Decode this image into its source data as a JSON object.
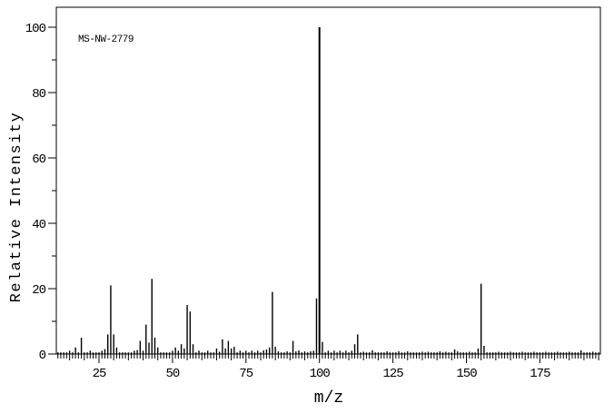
{
  "figure": {
    "background_color": "#ffffff",
    "line_color": "#000000",
    "annotation": "MS-NW-2779"
  },
  "chart_data": {
    "type": "bar",
    "subtype": "mass-spectrum",
    "title": "",
    "xlabel": "m/z",
    "ylabel": "Relative Intensity",
    "annotation": "MS-NW-2779",
    "xlim": [
      10.5,
      195.6
    ],
    "ylim": [
      0,
      106
    ],
    "x_major_ticks": [
      25,
      50,
      75,
      100,
      125,
      150,
      175
    ],
    "x_minor_step": 1,
    "x_medium_step": 5,
    "y_major_ticks": [
      0,
      20,
      40,
      60,
      80,
      100
    ],
    "y_minor_step": 10,
    "grid": "off",
    "legend": "none",
    "base_peak": {
      "mz": 100,
      "intensity": 100
    },
    "peaks": [
      [
        15,
        1
      ],
      [
        17,
        2
      ],
      [
        19,
        5
      ],
      [
        22,
        1
      ],
      [
        26,
        1
      ],
      [
        27,
        1.5
      ],
      [
        28,
        6
      ],
      [
        29,
        21
      ],
      [
        30,
        6
      ],
      [
        31,
        2
      ],
      [
        37,
        1
      ],
      [
        38,
        1.2
      ],
      [
        39,
        4
      ],
      [
        40,
        1
      ],
      [
        41,
        9
      ],
      [
        42,
        3.5
      ],
      [
        43,
        23
      ],
      [
        44,
        5
      ],
      [
        45,
        2
      ],
      [
        50,
        1
      ],
      [
        51,
        2
      ],
      [
        52,
        1
      ],
      [
        53,
        3
      ],
      [
        54,
        1.7
      ],
      [
        55,
        15
      ],
      [
        56,
        13
      ],
      [
        57,
        3
      ],
      [
        59,
        1
      ],
      [
        62,
        1
      ],
      [
        65,
        1.7
      ],
      [
        66,
        0.7
      ],
      [
        67,
        4.5
      ],
      [
        68,
        1.7
      ],
      [
        69,
        4
      ],
      [
        70,
        1.7
      ],
      [
        71,
        2.2
      ],
      [
        73,
        1
      ],
      [
        75,
        1
      ],
      [
        77,
        1
      ],
      [
        79,
        1
      ],
      [
        81,
        1.1
      ],
      [
        82,
        1.4
      ],
      [
        83,
        2
      ],
      [
        84,
        19
      ],
      [
        85,
        2.2
      ],
      [
        86,
        0.8
      ],
      [
        89,
        0.8
      ],
      [
        91,
        4
      ],
      [
        92,
        0.8
      ],
      [
        93,
        1.1
      ],
      [
        95,
        0.8
      ],
      [
        97,
        0.8
      ],
      [
        98,
        1
      ],
      [
        99,
        17
      ],
      [
        100,
        100
      ],
      [
        101,
        3.7
      ],
      [
        103,
        1
      ],
      [
        105,
        1
      ],
      [
        107,
        1
      ],
      [
        109,
        1
      ],
      [
        111,
        1
      ],
      [
        112,
        3
      ],
      [
        113,
        6
      ],
      [
        115,
        0.7
      ],
      [
        118,
        1.1
      ],
      [
        123,
        0.8
      ],
      [
        127,
        0.8
      ],
      [
        130,
        0.8
      ],
      [
        135,
        0.7
      ],
      [
        137,
        0.7
      ],
      [
        141,
        0.8
      ],
      [
        143,
        0.7
      ],
      [
        146,
        1.4
      ],
      [
        147,
        0.8
      ],
      [
        151,
        0.7
      ],
      [
        154,
        1.7
      ],
      [
        155,
        21.5
      ],
      [
        156,
        2.5
      ],
      [
        161,
        0.7
      ],
      [
        165,
        0.7
      ],
      [
        169,
        0.7
      ],
      [
        173,
        0.7
      ],
      [
        177,
        0.7
      ],
      [
        181,
        0.7
      ],
      [
        185,
        0.7
      ],
      [
        189,
        1.1
      ],
      [
        193,
        0.7
      ]
    ],
    "baseline_noise": {
      "mz_range": [
        11,
        195
      ],
      "intensity": 0.5
    }
  }
}
